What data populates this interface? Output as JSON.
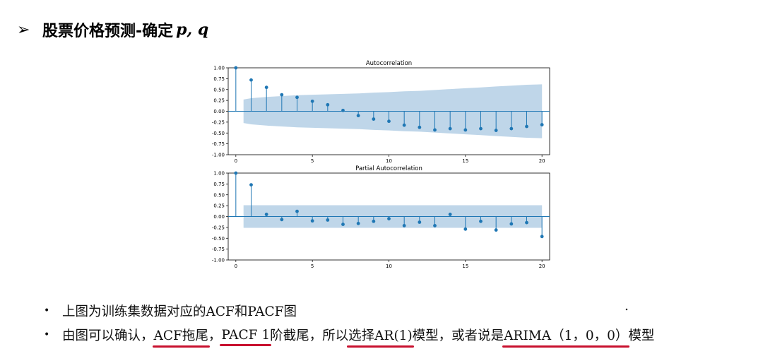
{
  "slide": {
    "bullet_symbol": "➢",
    "title": "股票价格预测-确定",
    "title_vars": "p, q"
  },
  "chart_data": [
    {
      "type": "stem",
      "title": "Autocorrelation",
      "xlim": [
        -0.5,
        20.5
      ],
      "ylim": [
        -1.0,
        1.0
      ],
      "x_ticks": [
        0,
        5,
        10,
        15,
        20
      ],
      "y_ticks": [
        "1.00",
        "0.75",
        "0.50",
        "0.25",
        "0.00",
        "-0.25",
        "-0.50",
        "-0.75",
        "-1.00"
      ],
      "x": [
        0,
        1,
        2,
        3,
        4,
        5,
        6,
        7,
        8,
        9,
        10,
        11,
        12,
        13,
        14,
        15,
        16,
        17,
        18,
        19,
        20
      ],
      "values": [
        1.0,
        0.72,
        0.55,
        0.38,
        0.32,
        0.23,
        0.15,
        0.02,
        -0.1,
        -0.18,
        -0.23,
        -0.32,
        -0.37,
        -0.43,
        -0.4,
        -0.43,
        -0.4,
        -0.44,
        -0.4,
        -0.35,
        -0.31
      ],
      "confidence_band": [
        0.27,
        0.3,
        0.33,
        0.35,
        0.37,
        0.38,
        0.39,
        0.4,
        0.41,
        0.43,
        0.44,
        0.46,
        0.47,
        0.49,
        0.51,
        0.53,
        0.55,
        0.57,
        0.59,
        0.61,
        0.62
      ],
      "color": "#1f77b4",
      "band_color": "#a9c8e2"
    },
    {
      "type": "stem",
      "title": "Partial Autocorrelation",
      "xlim": [
        -0.5,
        20.5
      ],
      "ylim": [
        -1.0,
        1.0
      ],
      "x_ticks": [
        0,
        5,
        10,
        15,
        20
      ],
      "y_ticks": [
        "1.00",
        "0.75",
        "0.50",
        "0.25",
        "0.00",
        "-0.25",
        "-0.50",
        "-0.75",
        "-1.00"
      ],
      "x": [
        0,
        1,
        2,
        3,
        4,
        5,
        6,
        7,
        8,
        9,
        10,
        11,
        12,
        13,
        14,
        15,
        16,
        17,
        18,
        19,
        20
      ],
      "values": [
        1.0,
        0.73,
        0.05,
        -0.07,
        0.12,
        -0.1,
        -0.08,
        -0.18,
        -0.16,
        -0.11,
        -0.05,
        -0.21,
        -0.13,
        -0.21,
        0.05,
        -0.29,
        -0.11,
        -0.31,
        -0.17,
        -0.14,
        -0.46
      ],
      "confidence_band": [
        0.26,
        0.26,
        0.26,
        0.26,
        0.26,
        0.26,
        0.26,
        0.26,
        0.26,
        0.26,
        0.26,
        0.26,
        0.26,
        0.26,
        0.26,
        0.26,
        0.26,
        0.26,
        0.26,
        0.26,
        0.26
      ],
      "color": "#1f77b4",
      "band_color": "#a9c8e2"
    }
  ],
  "bullets": {
    "symbol": "•",
    "line1": "上图为训练集数据对应的ACF和PACF图",
    "line1_trailing": ".",
    "line2_a": "由图可以确认，",
    "line2_b": "ACF拖尾",
    "line2_c": "，",
    "line2_d": "PACF 1",
    "line2_e": "阶截尾，所以",
    "line2_f": "选择AR(1)",
    "line2_g": "模型，或者说是",
    "line2_h": "ARIMA（1，0，0）",
    "line2_i": "模型",
    "underline_color": "#c8102e"
  }
}
